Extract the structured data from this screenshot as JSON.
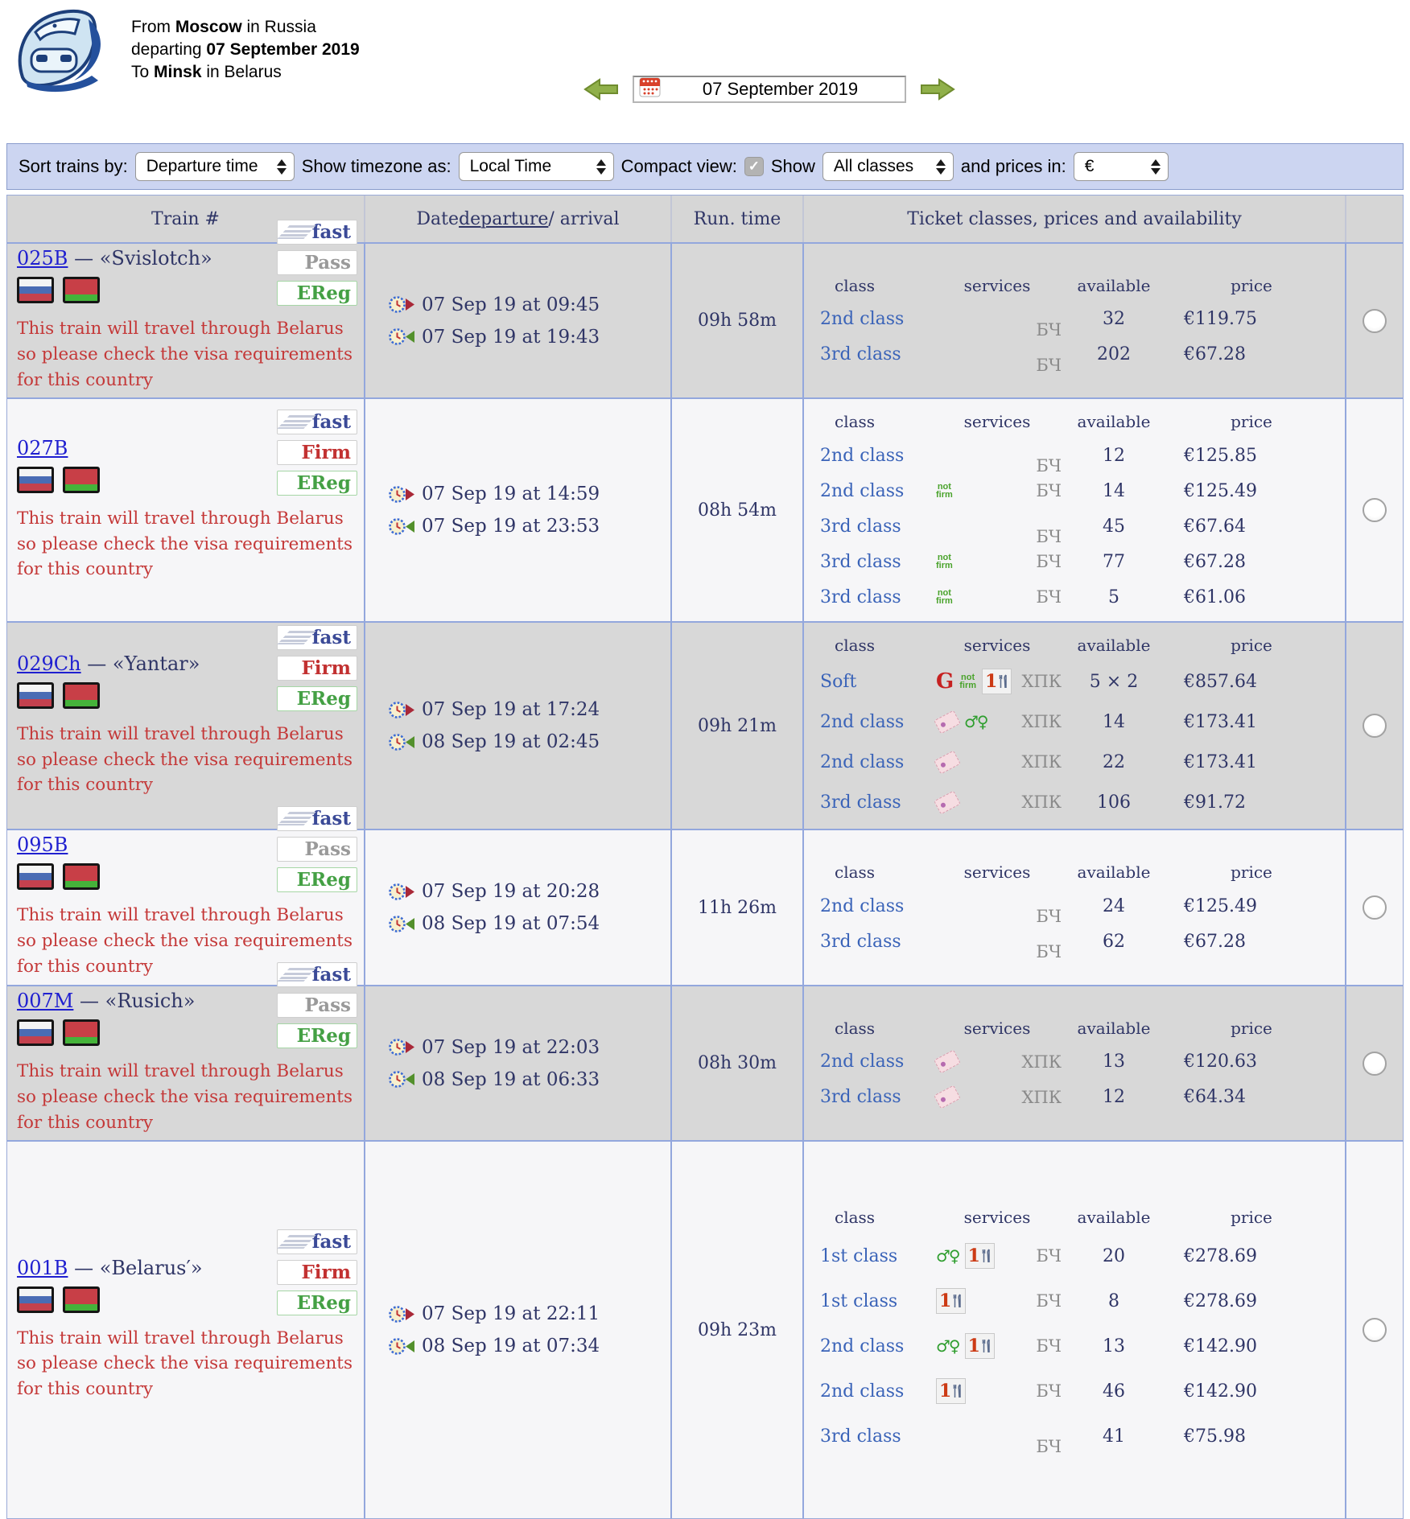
{
  "header": {
    "line1_pre": "From ",
    "line1_bold": "Moscow",
    "line1_post": " in Russia",
    "line2_pre": "departing ",
    "line2_bold": "07 September 2019",
    "line3_pre": "To ",
    "line3_bold": "Minsk",
    "line3_post": " in Belarus"
  },
  "date_nav": {
    "date": "07 September 2019"
  },
  "toolbar": {
    "sort_label": "Sort trains by:",
    "sort_value": "Departure time",
    "timezone_label": "Show timezone as:",
    "timezone_value": "Local Time",
    "compact_label": "Compact view:",
    "compact_checked": "✓",
    "show_label": "Show",
    "classes_value": "All classes",
    "prices_label": "and prices in:",
    "currency_value": "€"
  },
  "table": {
    "headers": {
      "train": "Train #",
      "date_pre": "Date ",
      "date_link": "departure",
      "date_post": " / arrival",
      "run": "Run. time",
      "tickets": "Ticket classes, prices and availability"
    },
    "subheaders": {
      "class": "class",
      "services": "services",
      "available": "available",
      "price": "price"
    },
    "warning": "This train will travel through Belarus so please check the visa requirements for this country",
    "rows": [
      {
        "number": "025B",
        "name": " — «Svislotch»",
        "badges": [
          "fast",
          "Pass",
          "EReg"
        ],
        "departure": "07 Sep 19 at 09:45",
        "arrival": "07 Sep 19 at 19:43",
        "run_time": "09h 58m",
        "tickets": [
          {
            "class": "2nd class",
            "services": [],
            "carrier": "БЧ",
            "available": "32",
            "price": "€119.75"
          },
          {
            "class": "3rd class",
            "services": [],
            "carrier": "БЧ",
            "available": "202",
            "price": "€67.28"
          }
        ]
      },
      {
        "number": "027B",
        "name": "",
        "badges": [
          "fast",
          "Firm",
          "EReg"
        ],
        "departure": "07 Sep 19 at 14:59",
        "arrival": "07 Sep 19 at 23:53",
        "run_time": "08h 54m",
        "tickets": [
          {
            "class": "2nd class",
            "services": [],
            "carrier": "БЧ",
            "available": "12",
            "price": "€125.85"
          },
          {
            "class": "2nd class",
            "services": [
              "not-firm"
            ],
            "carrier": "БЧ",
            "available": "14",
            "price": "€125.49"
          },
          {
            "class": "3rd class",
            "services": [],
            "carrier": "БЧ",
            "available": "45",
            "price": "€67.64"
          },
          {
            "class": "3rd class",
            "services": [
              "not-firm"
            ],
            "carrier": "БЧ",
            "available": "77",
            "price": "€67.28"
          },
          {
            "class": "3rd class",
            "services": [
              "not-firm"
            ],
            "carrier": "БЧ",
            "available": "5",
            "price": "€61.06"
          }
        ]
      },
      {
        "number": "029Ch",
        "name": " — «Yantar»",
        "badges": [
          "fast",
          "Firm",
          "EReg"
        ],
        "departure": "07 Sep 19 at 17:24",
        "arrival": "08 Sep 19 at 02:45",
        "run_time": "09h 21m",
        "tickets": [
          {
            "class": "Soft",
            "services": [
              "grand",
              "not-firm",
              "meal"
            ],
            "carrier": "ХПК",
            "available": "5 × 2",
            "price": "€857.64"
          },
          {
            "class": "2nd class",
            "services": [
              "ticket",
              "gender"
            ],
            "carrier": "ХПК",
            "available": "14",
            "price": "€173.41"
          },
          {
            "class": "2nd class",
            "services": [
              "ticket"
            ],
            "carrier": "ХПК",
            "available": "22",
            "price": "€173.41"
          },
          {
            "class": "3rd class",
            "services": [
              "ticket"
            ],
            "carrier": "ХПК",
            "available": "106",
            "price": "€91.72"
          }
        ]
      },
      {
        "number": "095B",
        "name": "",
        "badges": [
          "fast",
          "Pass",
          "EReg"
        ],
        "departure": "07 Sep 19 at 20:28",
        "arrival": "08 Sep 19 at 07:54",
        "run_time": "11h 26m",
        "tickets": [
          {
            "class": "2nd class",
            "services": [],
            "carrier": "БЧ",
            "available": "24",
            "price": "€125.49"
          },
          {
            "class": "3rd class",
            "services": [],
            "carrier": "БЧ",
            "available": "62",
            "price": "€67.28"
          }
        ]
      },
      {
        "number": "007M",
        "name": " — «Rusich»",
        "badges": [
          "fast",
          "Pass",
          "EReg"
        ],
        "departure": "07 Sep 19 at 22:03",
        "arrival": "08 Sep 19 at 06:33",
        "run_time": "08h 30m",
        "tickets": [
          {
            "class": "2nd class",
            "services": [
              "ticket"
            ],
            "carrier": "ХПК",
            "available": "13",
            "price": "€120.63"
          },
          {
            "class": "3rd class",
            "services": [
              "ticket"
            ],
            "carrier": "ХПК",
            "available": "12",
            "price": "€64.34"
          }
        ]
      },
      {
        "number": "001B",
        "name": " — «Belarus′»",
        "badges": [
          "fast",
          "Firm",
          "EReg"
        ],
        "departure": "07 Sep 19 at 22:11",
        "arrival": "08 Sep 19 at 07:34",
        "run_time": "09h 23m",
        "tickets": [
          {
            "class": "1st class",
            "services": [
              "gender",
              "meal"
            ],
            "carrier": "БЧ",
            "available": "20",
            "price": "€278.69"
          },
          {
            "class": "1st class",
            "services": [
              "meal"
            ],
            "carrier": "БЧ",
            "available": "8",
            "price": "€278.69"
          },
          {
            "class": "2nd class",
            "services": [
              "gender",
              "meal"
            ],
            "carrier": "БЧ",
            "available": "13",
            "price": "€142.90"
          },
          {
            "class": "2nd class",
            "services": [
              "meal"
            ],
            "carrier": "БЧ",
            "available": "46",
            "price": "€142.90"
          },
          {
            "class": "3rd class",
            "services": [],
            "carrier": "БЧ",
            "available": "41",
            "price": "€75.98"
          }
        ]
      }
    ]
  }
}
